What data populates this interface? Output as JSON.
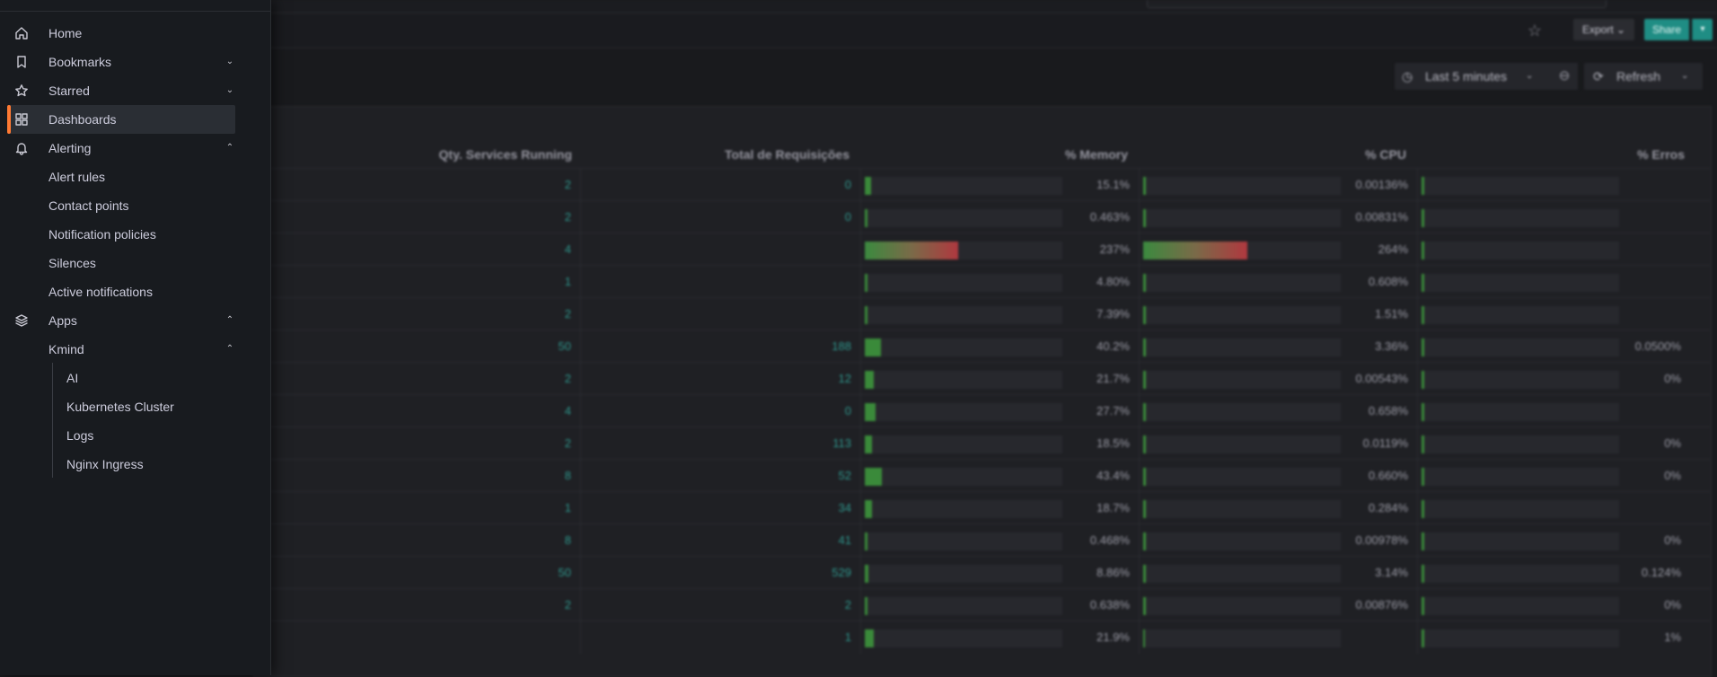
{
  "toolbar": {
    "export_label": "Export",
    "share_label": "Share"
  },
  "controls": {
    "time_range": "Last 5 minutes",
    "refresh_label": "Refresh"
  },
  "table": {
    "columns": [
      "Qty. Services Running",
      "Total de Requisições",
      "% Memory",
      "% CPU",
      "% Erros"
    ],
    "rows": [
      {
        "services": "2",
        "requests": "0",
        "memory": "15.1%",
        "memory_fill": 0.151,
        "cpu": "0.00136%",
        "cpu_fill": 1.36e-05,
        "errors": ""
      },
      {
        "services": "2",
        "requests": "0",
        "memory": "0.463%",
        "memory_fill": 0.00463,
        "cpu": "0.00831%",
        "cpu_fill": 8.31e-05,
        "errors": ""
      },
      {
        "services": "4",
        "requests": "",
        "memory": "237%",
        "memory_fill": 2.37,
        "cpu": "264%",
        "cpu_fill": 2.64,
        "errors": ""
      },
      {
        "services": "1",
        "requests": "",
        "memory": "4.80%",
        "memory_fill": 0.048,
        "cpu": "0.608%",
        "cpu_fill": 0.00608,
        "errors": ""
      },
      {
        "services": "2",
        "requests": "",
        "memory": "7.39%",
        "memory_fill": 0.0739,
        "cpu": "1.51%",
        "cpu_fill": 0.0151,
        "errors": ""
      },
      {
        "services": "50",
        "requests": "188",
        "memory": "40.2%",
        "memory_fill": 0.402,
        "cpu": "3.36%",
        "cpu_fill": 0.0336,
        "errors": "0.0500%"
      },
      {
        "services": "2",
        "requests": "12",
        "memory": "21.7%",
        "memory_fill": 0.217,
        "cpu": "0.00543%",
        "cpu_fill": 5.43e-05,
        "errors": "0%"
      },
      {
        "services": "4",
        "requests": "0",
        "memory": "27.7%",
        "memory_fill": 0.277,
        "cpu": "0.658%",
        "cpu_fill": 0.00658,
        "errors": ""
      },
      {
        "services": "2",
        "requests": "113",
        "memory": "18.5%",
        "memory_fill": 0.185,
        "cpu": "0.0119%",
        "cpu_fill": 0.000119,
        "errors": "0%"
      },
      {
        "services": "8",
        "requests": "52",
        "memory": "43.4%",
        "memory_fill": 0.434,
        "cpu": "0.660%",
        "cpu_fill": 0.0066,
        "errors": "0%"
      },
      {
        "services": "1",
        "requests": "34",
        "memory": "18.7%",
        "memory_fill": 0.187,
        "cpu": "0.284%",
        "cpu_fill": 0.00284,
        "errors": ""
      },
      {
        "services": "8",
        "requests": "41",
        "memory": "0.468%",
        "memory_fill": 0.00468,
        "cpu": "0.00978%",
        "cpu_fill": 9.78e-05,
        "errors": "0%"
      },
      {
        "services": "50",
        "requests": "529",
        "memory": "8.86%",
        "memory_fill": 0.0886,
        "cpu": "3.14%",
        "cpu_fill": 0.0314,
        "errors": "0.124%"
      },
      {
        "services": "2",
        "requests": "2",
        "memory": "0.638%",
        "memory_fill": 0.00638,
        "cpu": "0.00876%",
        "cpu_fill": 8.76e-05,
        "errors": "0%"
      },
      {
        "services": "",
        "requests": "1",
        "memory": "21.9%",
        "memory_fill": 0.219,
        "cpu": "",
        "cpu_fill": 0,
        "errors": "1%"
      }
    ],
    "gauge_max": 5
  },
  "sidebar": {
    "items": [
      {
        "label": "Home",
        "icon": "home-icon",
        "chevron": ""
      },
      {
        "label": "Bookmarks",
        "icon": "bookmark-icon",
        "chevron": "down"
      },
      {
        "label": "Starred",
        "icon": "star-icon",
        "chevron": "down"
      },
      {
        "label": "Dashboards",
        "icon": "dashboards-icon",
        "chevron": "",
        "active": true
      },
      {
        "label": "Alerting",
        "icon": "bell-icon",
        "chevron": "up"
      }
    ],
    "alerting_children": [
      "Alert rules",
      "Contact points",
      "Notification policies",
      "Silences",
      "Active notifications"
    ],
    "apps_label": "Apps",
    "kmind_label": "Kmind",
    "kmind_children": [
      "AI",
      "Kubernetes Cluster",
      "Logs",
      "Nginx Ingress"
    ]
  },
  "colors": {
    "accent": "#ff7a33",
    "teal": "#2e968c",
    "share": "#1f8d84",
    "gauge_green": "#3a8a3a",
    "gauge_red": "#b0383f"
  }
}
